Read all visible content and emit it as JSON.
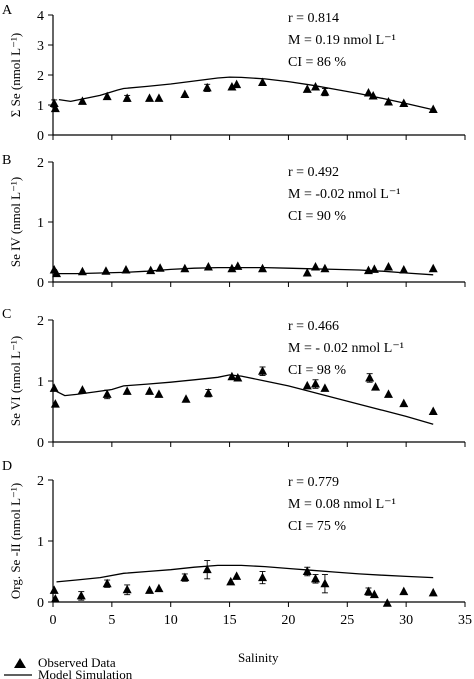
{
  "legend": {
    "observed": "Observed Data",
    "model": "Model Simulation"
  },
  "shared_xlabel": "Salinity",
  "chart_data": [
    {
      "panel": "A",
      "type": "scatter",
      "ylabel": "Σ Se (nmol L⁻¹)",
      "xlim": [
        0,
        35
      ],
      "ylim": [
        0,
        4
      ],
      "yticks": [
        0,
        1,
        2,
        3,
        4
      ],
      "xticks": [],
      "stats": [
        "r = 0.814",
        "M = 0.19 nmol L⁻¹",
        "CI = 86 %"
      ],
      "observed": [
        {
          "x": 0.1,
          "y": 1.05,
          "err": 0.12
        },
        {
          "x": 0.2,
          "y": 0.88
        },
        {
          "x": 2.5,
          "y": 1.12
        },
        {
          "x": 4.6,
          "y": 1.28
        },
        {
          "x": 6.3,
          "y": 1.22,
          "err": 0.1
        },
        {
          "x": 8.2,
          "y": 1.22
        },
        {
          "x": 9.0,
          "y": 1.22
        },
        {
          "x": 11.2,
          "y": 1.35
        },
        {
          "x": 13.1,
          "y": 1.57,
          "err": 0.12
        },
        {
          "x": 15.2,
          "y": 1.6
        },
        {
          "x": 15.6,
          "y": 1.68
        },
        {
          "x": 17.8,
          "y": 1.75
        },
        {
          "x": 21.6,
          "y": 1.52
        },
        {
          "x": 22.3,
          "y": 1.6
        },
        {
          "x": 23.1,
          "y": 1.43,
          "err": 0.12
        },
        {
          "x": 26.8,
          "y": 1.4
        },
        {
          "x": 27.2,
          "y": 1.3
        },
        {
          "x": 28.5,
          "y": 1.1
        },
        {
          "x": 29.8,
          "y": 1.05
        },
        {
          "x": 32.3,
          "y": 0.85
        }
      ],
      "model": {
        "x": [
          0.5,
          1.5,
          2.5,
          4,
          5.5,
          6,
          8,
          10,
          12,
          14,
          15,
          16,
          18,
          20,
          22,
          24,
          26,
          28,
          30,
          32.3
        ],
        "y": [
          1.18,
          1.12,
          1.2,
          1.32,
          1.5,
          1.55,
          1.62,
          1.7,
          1.8,
          1.9,
          1.93,
          1.92,
          1.87,
          1.78,
          1.66,
          1.52,
          1.38,
          1.22,
          1.05,
          0.84
        ]
      }
    },
    {
      "panel": "B",
      "type": "scatter",
      "ylabel": "Se IV (nmol L⁻¹)",
      "xlim": [
        0,
        35
      ],
      "ylim": [
        0,
        2
      ],
      "yticks": [
        0,
        1,
        2
      ],
      "xticks": [],
      "stats": [
        "r = 0.492",
        "M = -0.02 nmol L⁻¹",
        "CI = 90 %"
      ],
      "observed": [
        {
          "x": 0.1,
          "y": 0.2
        },
        {
          "x": 0.3,
          "y": 0.14
        },
        {
          "x": 2.5,
          "y": 0.17
        },
        {
          "x": 4.5,
          "y": 0.18
        },
        {
          "x": 6.2,
          "y": 0.2
        },
        {
          "x": 8.3,
          "y": 0.19
        },
        {
          "x": 9.1,
          "y": 0.23
        },
        {
          "x": 11.2,
          "y": 0.22
        },
        {
          "x": 13.2,
          "y": 0.25
        },
        {
          "x": 15.2,
          "y": 0.22
        },
        {
          "x": 15.7,
          "y": 0.26
        },
        {
          "x": 17.8,
          "y": 0.22
        },
        {
          "x": 21.6,
          "y": 0.15
        },
        {
          "x": 22.3,
          "y": 0.25
        },
        {
          "x": 23.1,
          "y": 0.22
        },
        {
          "x": 26.8,
          "y": 0.19
        },
        {
          "x": 27.3,
          "y": 0.21
        },
        {
          "x": 28.5,
          "y": 0.25
        },
        {
          "x": 29.8,
          "y": 0.2
        },
        {
          "x": 32.3,
          "y": 0.22
        }
      ],
      "model": {
        "x": [
          0.5,
          2,
          4,
          6,
          8,
          10,
          12,
          14,
          16,
          18,
          20,
          22,
          24,
          26,
          28,
          30,
          32.3
        ],
        "y": [
          0.14,
          0.14,
          0.15,
          0.16,
          0.18,
          0.21,
          0.23,
          0.24,
          0.24,
          0.24,
          0.23,
          0.22,
          0.21,
          0.2,
          0.18,
          0.15,
          0.12
        ]
      }
    },
    {
      "panel": "C",
      "type": "scatter",
      "ylabel": "Se VI (nmol L⁻¹)",
      "xlim": [
        0,
        35
      ],
      "ylim": [
        0,
        2
      ],
      "yticks": [
        0,
        1,
        2
      ],
      "xticks": [],
      "stats": [
        "r = 0.466",
        "M = - 0.02 nmol L⁻¹",
        "CI = 98 %"
      ],
      "observed": [
        {
          "x": 0.1,
          "y": 0.88
        },
        {
          "x": 0.2,
          "y": 0.62
        },
        {
          "x": 2.5,
          "y": 0.85
        },
        {
          "x": 4.6,
          "y": 0.78,
          "err": 0.07
        },
        {
          "x": 6.3,
          "y": 0.83
        },
        {
          "x": 8.2,
          "y": 0.83
        },
        {
          "x": 9.0,
          "y": 0.78
        },
        {
          "x": 11.3,
          "y": 0.7
        },
        {
          "x": 13.2,
          "y": 0.8,
          "err": 0.06
        },
        {
          "x": 15.2,
          "y": 1.07
        },
        {
          "x": 15.7,
          "y": 1.05
        },
        {
          "x": 17.8,
          "y": 1.16,
          "err": 0.07
        },
        {
          "x": 21.6,
          "y": 0.92
        },
        {
          "x": 22.3,
          "y": 0.95,
          "err": 0.07
        },
        {
          "x": 23.1,
          "y": 0.88
        },
        {
          "x": 26.9,
          "y": 1.05,
          "err": 0.07
        },
        {
          "x": 27.4,
          "y": 0.9
        },
        {
          "x": 28.5,
          "y": 0.78
        },
        {
          "x": 29.8,
          "y": 0.63
        },
        {
          "x": 32.3,
          "y": 0.5
        }
      ],
      "model": {
        "x": [
          0.3,
          1,
          2,
          3.5,
          5,
          6,
          8,
          10,
          12,
          14,
          15,
          16,
          18,
          20,
          22,
          24,
          26,
          28,
          30,
          32.3
        ],
        "y": [
          0.83,
          0.76,
          0.78,
          0.82,
          0.86,
          0.92,
          0.95,
          0.98,
          1.02,
          1.06,
          1.1,
          1.08,
          1.0,
          0.92,
          0.82,
          0.72,
          0.62,
          0.52,
          0.42,
          0.29
        ]
      }
    },
    {
      "panel": "D",
      "type": "scatter",
      "ylabel": "Org. Se -II (nmol L⁻¹)",
      "xlim": [
        0,
        35
      ],
      "ylim": [
        0,
        2
      ],
      "yticks": [
        0,
        1,
        2
      ],
      "xticks": [
        0,
        5,
        10,
        15,
        20,
        25,
        30,
        35
      ],
      "stats": [
        "r = 0.779",
        "M = 0.08 nmol L⁻¹",
        "CI = 75 %"
      ],
      "observed": [
        {
          "x": 0.1,
          "y": 0.19
        },
        {
          "x": 0.2,
          "y": 0.05
        },
        {
          "x": 2.4,
          "y": 0.1,
          "err": 0.07
        },
        {
          "x": 4.6,
          "y": 0.3,
          "err": 0.06
        },
        {
          "x": 6.3,
          "y": 0.2,
          "err": 0.08
        },
        {
          "x": 8.2,
          "y": 0.19
        },
        {
          "x": 9.0,
          "y": 0.22
        },
        {
          "x": 11.2,
          "y": 0.4,
          "err": 0.06
        },
        {
          "x": 13.1,
          "y": 0.53,
          "err": 0.15
        },
        {
          "x": 15.1,
          "y": 0.33
        },
        {
          "x": 15.6,
          "y": 0.42
        },
        {
          "x": 17.8,
          "y": 0.4,
          "err": 0.1
        },
        {
          "x": 21.6,
          "y": 0.5,
          "err": 0.07
        },
        {
          "x": 22.3,
          "y": 0.38,
          "err": 0.07
        },
        {
          "x": 23.1,
          "y": 0.3,
          "err": 0.15
        },
        {
          "x": 26.8,
          "y": 0.17,
          "err": 0.06
        },
        {
          "x": 27.3,
          "y": 0.12
        },
        {
          "x": 28.4,
          "y": -0.02
        },
        {
          "x": 29.8,
          "y": 0.17
        },
        {
          "x": 32.3,
          "y": 0.15
        }
      ],
      "model": {
        "x": [
          0.3,
          2,
          4,
          6,
          8,
          10,
          12,
          14,
          15,
          16,
          18,
          20,
          22,
          24,
          26,
          28,
          30,
          32.3
        ],
        "y": [
          0.33,
          0.36,
          0.4,
          0.47,
          0.5,
          0.53,
          0.57,
          0.6,
          0.6,
          0.6,
          0.58,
          0.55,
          0.52,
          0.49,
          0.46,
          0.44,
          0.42,
          0.4
        ]
      }
    }
  ]
}
